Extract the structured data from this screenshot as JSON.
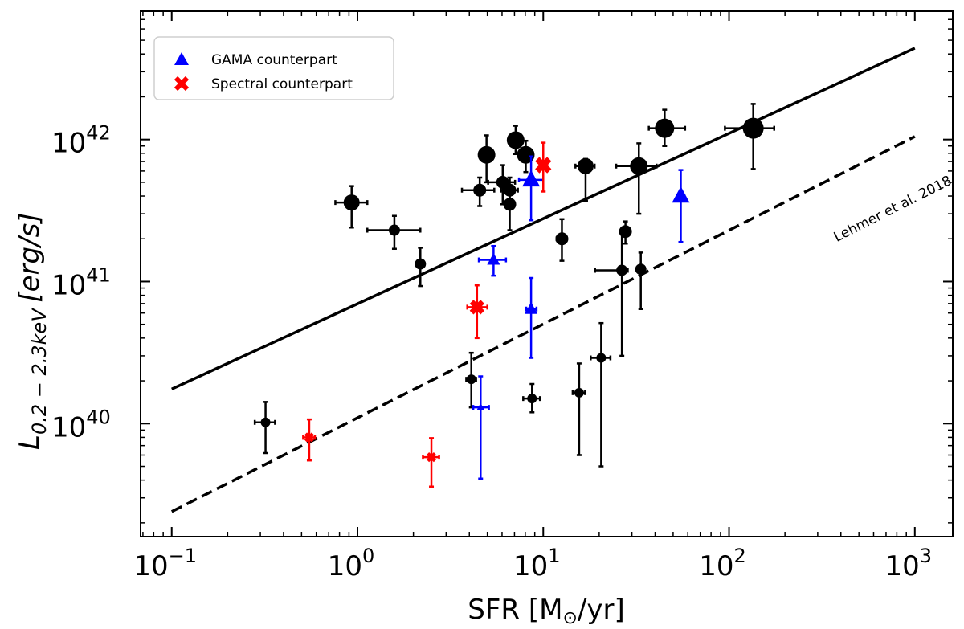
{
  "chart_data": {
    "type": "scatter",
    "title": "",
    "xlabel_main": "SFR",
    "xlabel_unit_prefix": "[M",
    "xlabel_unit_suffix": "/yr]",
    "ylabel_main": "L",
    "ylabel_sub": "0.2 − 2.3keV",
    "ylabel_unit": "[erg/s]",
    "x_scale": "log",
    "y_scale": "log",
    "xlim": [
      0.068,
      1600
    ],
    "ylim": [
      1.6e+39,
      8e+42
    ],
    "x_ticks": [
      {
        "base": "10",
        "exp": "−1",
        "value": 0.1
      },
      {
        "base": "10",
        "exp": "0",
        "value": 1
      },
      {
        "base": "10",
        "exp": "1",
        "value": 10
      },
      {
        "base": "10",
        "exp": "2",
        "value": 100
      },
      {
        "base": "10",
        "exp": "3",
        "value": 1000
      }
    ],
    "y_ticks": [
      {
        "base": "10",
        "exp": "40",
        "value": 1e+40
      },
      {
        "base": "10",
        "exp": "41",
        "value": 1e+41
      },
      {
        "base": "10",
        "exp": "42",
        "value": 1e+42
      }
    ],
    "grid": false,
    "legend_position": "top-left",
    "legend": [
      {
        "label": "GAMA counterpart",
        "marker": "triangle",
        "color": "#0000ff"
      },
      {
        "label": "Spectral counterpart",
        "marker": "x",
        "color": "#ff0000"
      }
    ],
    "lines": [
      {
        "style": "solid",
        "x": [
          0.1,
          1000
        ],
        "y": [
          1.75e+40,
          4.4e+42
        ]
      },
      {
        "style": "dashed",
        "x": [
          0.1,
          1000
        ],
        "y": [
          2.4e+39,
          1.05e+42
        ],
        "label": "Lehmer et al. 2018"
      }
    ],
    "series": [
      {
        "group": "black",
        "color": "#000000",
        "points": [
          {
            "x": 0.93,
            "y": 3.6e+41,
            "xerr": [
              0.17,
              0.2
            ],
            "yerr": [
              1.2e+41,
              1.1e+41
            ],
            "size": 10
          },
          {
            "x": 1.58,
            "y": 2.3e+41,
            "xerr": [
              0.45,
              0.6
            ],
            "yerr": [
              6e+40,
              6e+40
            ],
            "size": 7
          },
          {
            "x": 2.18,
            "y": 1.33e+41,
            "xerr": [
              0.06,
              0.06
            ],
            "yerr": [
              4e+40,
              4e+40
            ],
            "size": 7
          },
          {
            "x": 4.95,
            "y": 7.8e+41,
            "xerr": [
              0.3,
              0.3
            ],
            "yerr": [
              2.8e+41,
              2.9e+41
            ],
            "size": 11
          },
          {
            "x": 4.55,
            "y": 4.4e+41,
            "xerr": [
              0.9,
              0.9
            ],
            "yerr": [
              1e+41,
              1e+41
            ],
            "size": 8
          },
          {
            "x": 7.1,
            "y": 9.9e+41,
            "xerr": [
              0.5,
              0.6
            ],
            "yerr": [
              2e+41,
              2.6e+41
            ],
            "size": 11
          },
          {
            "x": 8.05,
            "y": 7.8e+41,
            "xerr": [
              0.7,
              0.7
            ],
            "yerr": [
              1.9e+41,
              2e+41
            ],
            "size": 11
          },
          {
            "x": 6.05,
            "y": 5e+41,
            "xerr": [
              1.0,
              1.0
            ],
            "yerr": [
              1.5e+41,
              1.6e+41
            ],
            "size": 8
          },
          {
            "x": 6.6,
            "y": 4.4e+41,
            "xerr": [
              0.7,
              0.7
            ],
            "yerr": [
              1e+41,
              1e+41
            ],
            "size": 8
          },
          {
            "x": 6.6,
            "y": 3.5e+41,
            "xerr": [
              0.15,
              0.15
            ],
            "yerr": [
              1.2e+41,
              1.2e+41
            ],
            "size": 8
          },
          {
            "x": 12.6,
            "y": 2e+41,
            "xerr": [
              0.8,
              0.8
            ],
            "yerr": [
              6e+40,
              7.5e+40
            ],
            "size": 8
          },
          {
            "x": 16.9,
            "y": 6.5e+41,
            "xerr": [
              2.0,
              2.0
            ],
            "yerr": [
              2.8e+41,
              8e+40
            ],
            "size": 10
          },
          {
            "x": 32.7,
            "y": 6.5e+41,
            "xerr": [
              8.0,
              8.0
            ],
            "yerr": [
              3.5e+41,
              2.9e+41
            ],
            "size": 11
          },
          {
            "x": 45.0,
            "y": 1.2e+42,
            "xerr": [
              8.0,
              13.0
            ],
            "yerr": [
              3e+41,
              4.2e+41
            ],
            "size": 12
          },
          {
            "x": 135.0,
            "y": 1.2e+42,
            "xerr": [
              40.0,
              40.0
            ],
            "yerr": [
              5.8e+41,
              5.8e+41
            ],
            "size": 13
          },
          {
            "x": 27.7,
            "y": 2.25e+41,
            "xerr": [
              1.2,
              1.2
            ],
            "yerr": [
              4e+40,
              4e+40
            ],
            "size": 8
          },
          {
            "x": 26.5,
            "y": 1.2e+41,
            "xerr": [
              7.5,
              2.0
            ],
            "yerr": [
              9e+40,
              1e+41
            ],
            "size": 7
          },
          {
            "x": 33.5,
            "y": 1.22e+41,
            "xerr": [
              1.5,
              1.5
            ],
            "yerr": [
              5.8e+40,
              3.8e+40
            ],
            "size": 7
          },
          {
            "x": 20.5,
            "y": 2.9e+40,
            "xerr": [
              2.5,
              2.5
            ],
            "yerr": [
              2.4e+40,
              2.2e+40
            ],
            "size": 6
          },
          {
            "x": 15.6,
            "y": 1.65e+40,
            "xerr": [
              1.2,
              1.2
            ],
            "yerr": [
              1.05e+40,
              1e+40
            ],
            "size": 6
          },
          {
            "x": 8.7,
            "y": 1.5e+40,
            "xerr": [
              0.9,
              0.9
            ],
            "yerr": [
              3e+39,
              4e+39
            ],
            "size": 6
          },
          {
            "x": 4.1,
            "y": 2.05e+40,
            "xerr": [
              0.25,
              0.25
            ],
            "yerr": [
              7.5e+39,
              1.1e+40
            ],
            "size": 6
          },
          {
            "x": 0.32,
            "y": 1.02e+40,
            "xerr": [
              0.04,
              0.04
            ],
            "yerr": [
              4e+39,
              4e+39
            ],
            "size": 6
          }
        ]
      },
      {
        "group": "blue",
        "color": "#0000ff",
        "points": [
          {
            "x": 8.6,
            "y": 5.2e+41,
            "xerr": [
              1.2,
              1.4
            ],
            "yerr": [
              2.5e+41,
              2.4e+41
            ],
            "marker": "triangle",
            "size": 11
          },
          {
            "x": 55.0,
            "y": 4e+41,
            "xerr": [
              2.5,
              2.5
            ],
            "yerr": [
              2.1e+41,
              2.1e+41
            ],
            "marker": "triangle",
            "size": 11
          },
          {
            "x": 5.4,
            "y": 1.42e+41,
            "xerr": [
              0.9,
              0.9
            ],
            "yerr": [
              3.2e+40,
              3.6e+40
            ],
            "marker": "triangle",
            "size": 8
          },
          {
            "x": 8.6,
            "y": 6.4e+40,
            "xerr": [
              0.5,
              0.6
            ],
            "yerr": [
              3.5e+40,
              4.2e+40
            ],
            "marker": "triangle",
            "size": 8
          },
          {
            "x": 4.6,
            "y": 1.3e+40,
            "xerr": [
              0.4,
              0.5
            ],
            "yerr": [
              8.9e+39,
              8.5e+39
            ],
            "marker": "triangle",
            "size": 5
          }
        ]
      },
      {
        "group": "red",
        "color": "#ff0000",
        "points": [
          {
            "x": 10.0,
            "y": 6.6e+41,
            "xerr": [
              0.4,
              0.4
            ],
            "yerr": [
              2.3e+41,
              2.9e+41
            ],
            "marker": "x",
            "size": 10
          },
          {
            "x": 4.4,
            "y": 6.6e+40,
            "xerr": [
              0.5,
              0.6
            ],
            "yerr": [
              2.6e+40,
              2.8e+40
            ],
            "marker": "x",
            "size": 9
          },
          {
            "x": 0.55,
            "y": 8e+39,
            "xerr": [
              0.04,
              0.04
            ],
            "yerr": [
              2.5e+39,
              2.7e+39
            ],
            "marker": "x",
            "size": 6
          },
          {
            "x": 2.5,
            "y": 5.8e+39,
            "xerr": [
              0.25,
              0.25
            ],
            "yerr": [
              2.2e+39,
              2.1e+39
            ],
            "marker": "x",
            "size": 6
          }
        ]
      }
    ]
  }
}
